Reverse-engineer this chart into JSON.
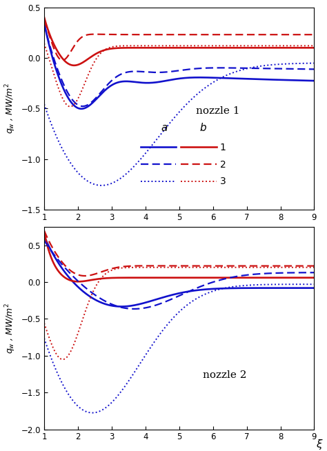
{
  "blue": "#1111cc",
  "red": "#cc1111",
  "title1": "nozzle 1",
  "title2": "nozzle 2",
  "ylabel": "$q_w$ , MW/m$^2$",
  "xlabel": "$\\xi$",
  "xlim": [
    1,
    9
  ],
  "ylim1": [
    -1.5,
    0.5
  ],
  "ylim2": [
    -2.0,
    0.75
  ],
  "xticks": [
    1,
    2,
    3,
    4,
    5,
    6,
    7,
    8,
    9
  ],
  "yticks1": [
    -1.5,
    -1.0,
    -0.5,
    0.0,
    0.5
  ],
  "yticks2": [
    -2.0,
    -1.5,
    -1.0,
    -0.5,
    0.0,
    0.5
  ],
  "lw": 1.6
}
